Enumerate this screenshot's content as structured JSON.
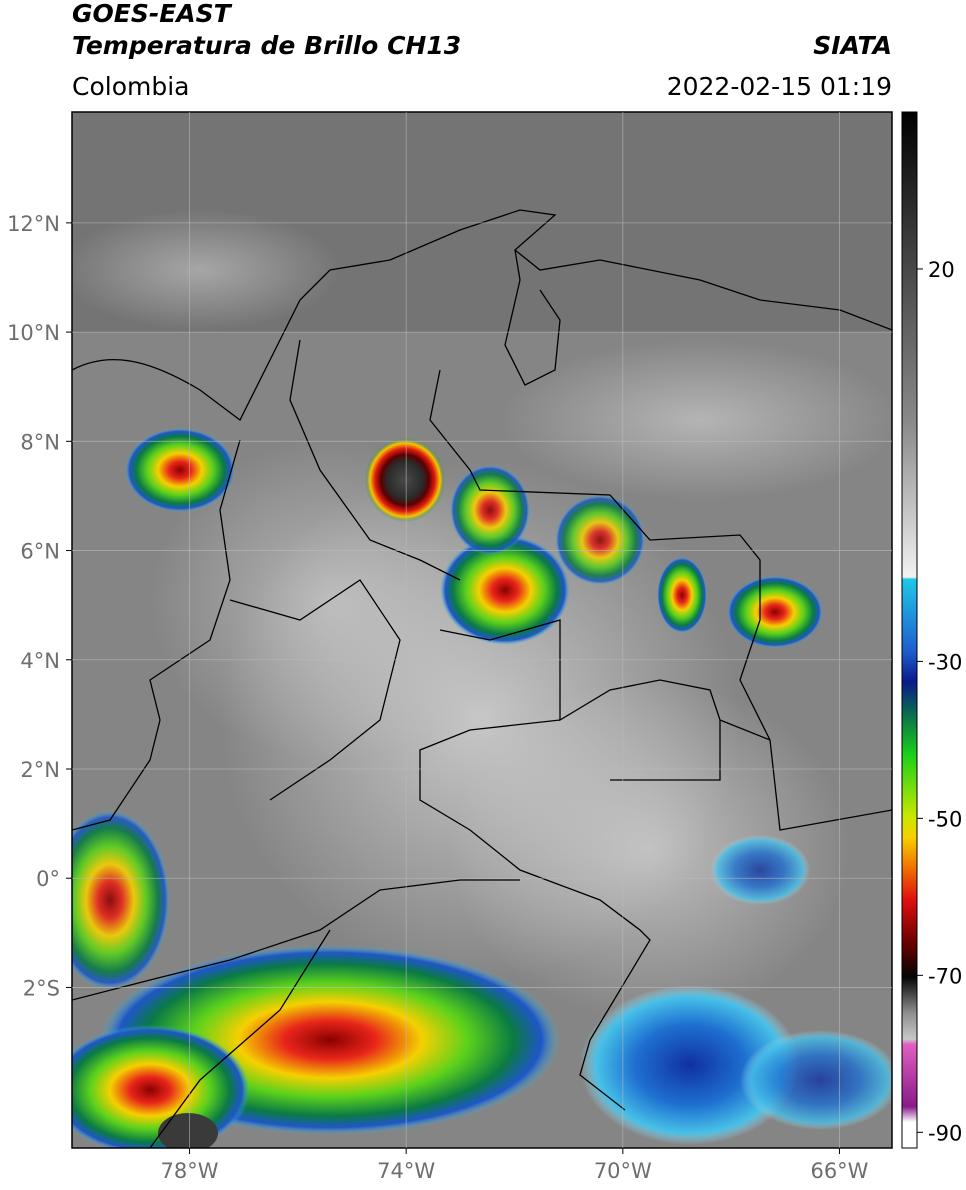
{
  "header": {
    "satellite": "GOES-EAST",
    "product": "Temperatura de Brillo CH13",
    "institution": "SIATA",
    "region": "Colombia",
    "datetime": "2022-02-15 01:19"
  },
  "map": {
    "type": "map",
    "xlim": [
      -80.17,
      -65.03
    ],
    "ylim": [
      -4.94,
      14.03
    ],
    "xticks": [
      {
        "value": -78,
        "label": "78°W"
      },
      {
        "value": -74,
        "label": "74°W"
      },
      {
        "value": -70,
        "label": "70°W"
      },
      {
        "value": -66,
        "label": "66°W"
      }
    ],
    "yticks": [
      {
        "value": 12,
        "label": "12°N"
      },
      {
        "value": 10,
        "label": "10°N"
      },
      {
        "value": 8,
        "label": "8°N"
      },
      {
        "value": 6,
        "label": "6°N"
      },
      {
        "value": 4,
        "label": "4°N"
      },
      {
        "value": 2,
        "label": "2°N"
      },
      {
        "value": 0,
        "label": "0°"
      },
      {
        "value": -2,
        "label": "2°S"
      }
    ],
    "grid": true
  },
  "colorbar": {
    "clim": [
      -92,
      40
    ],
    "ticks": [
      20,
      -30,
      -50,
      -70,
      -90
    ]
  }
}
